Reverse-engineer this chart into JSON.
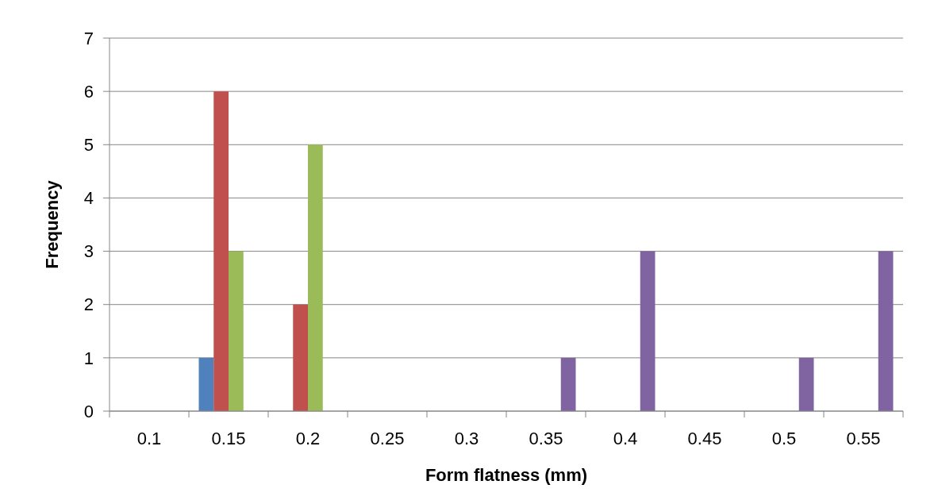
{
  "chart_data": {
    "type": "bar",
    "xlabel": "Form flatness (mm)",
    "ylabel": "Frequency",
    "categories": [
      "0.1",
      "0.15",
      "0.2",
      "0.25",
      "0.3",
      "0.35",
      "0.4",
      "0.45",
      "0.5",
      "0.55"
    ],
    "series": [
      {
        "color": "#4f81bd",
        "values": [
          0,
          1,
          0,
          0,
          0,
          0,
          0,
          0,
          0,
          0
        ]
      },
      {
        "color": "#c0504d",
        "values": [
          0,
          6,
          2,
          0,
          0,
          0,
          0,
          0,
          0,
          0
        ]
      },
      {
        "color": "#9bbb59",
        "values": [
          0,
          3,
          5,
          0,
          0,
          0,
          0,
          0,
          0,
          0
        ]
      },
      {
        "color": "#8064a2",
        "values": [
          0,
          0,
          0,
          0,
          0,
          1,
          3,
          0,
          1,
          3
        ]
      }
    ],
    "ylim": [
      0,
      7
    ],
    "yticks": [
      0,
      1,
      2,
      3,
      4,
      5,
      6,
      7
    ],
    "grid": "y"
  }
}
